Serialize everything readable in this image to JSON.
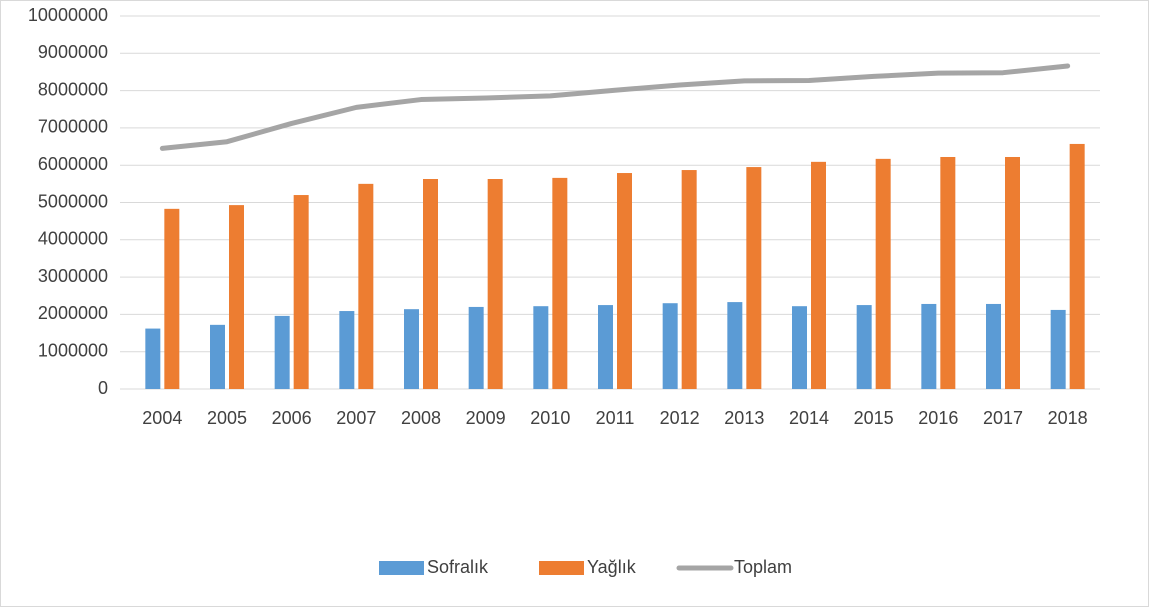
{
  "chart_data": {
    "type": "bar_line",
    "categories": [
      "2004",
      "2005",
      "2006",
      "2007",
      "2008",
      "2009",
      "2010",
      "2011",
      "2012",
      "2013",
      "2014",
      "2015",
      "2016",
      "2017",
      "2018"
    ],
    "series": [
      {
        "name": "Sofralık",
        "color": "#5b9bd5",
        "kind": "bar",
        "values": [
          1620000,
          1720000,
          1960000,
          2090000,
          2140000,
          2200000,
          2220000,
          2250000,
          2300000,
          2330000,
          2220000,
          2250000,
          2280000,
          2280000,
          2120000
        ]
      },
      {
        "name": "Yağlık",
        "color": "#ed7d31",
        "kind": "bar",
        "values": [
          4830000,
          4930000,
          5200000,
          5500000,
          5630000,
          5630000,
          5660000,
          5790000,
          5870000,
          5950000,
          6090000,
          6170000,
          6220000,
          6220000,
          6570000
        ]
      },
      {
        "name": "Toplam",
        "color": "#a5a5a5",
        "kind": "line",
        "values": [
          6450000,
          6630000,
          7120000,
          7550000,
          7760000,
          7800000,
          7860000,
          8010000,
          8150000,
          8260000,
          8270000,
          8380000,
          8470000,
          8480000,
          8660000
        ]
      }
    ],
    "ylim": [
      0,
      10000000
    ],
    "yticks": [
      0,
      1000000,
      2000000,
      3000000,
      4000000,
      5000000,
      6000000,
      7000000,
      8000000,
      9000000,
      10000000
    ],
    "grid": true,
    "legend": "bottom"
  }
}
